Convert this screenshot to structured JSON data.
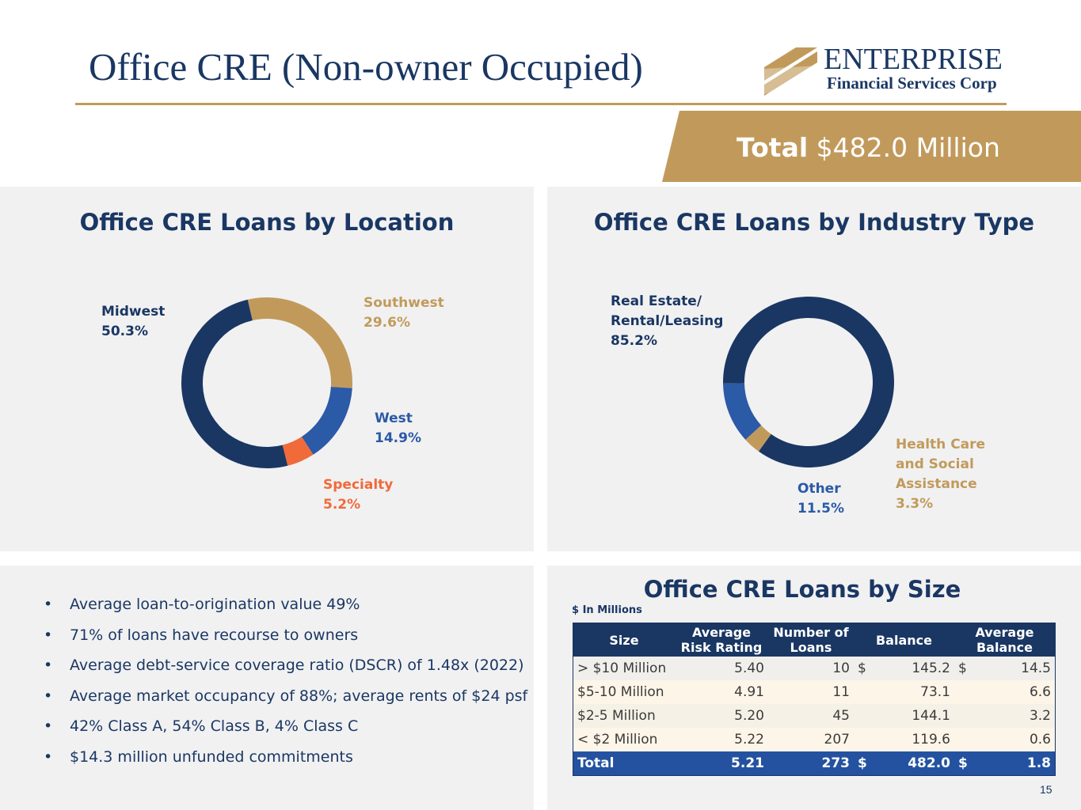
{
  "header": {
    "title": "Office CRE (Non-owner Occupied)",
    "logo_name": "ENTERPRISE",
    "logo_sub": "Financial Services Corp",
    "total_label": "Total",
    "total_value": "$482.0 Million"
  },
  "colors": {
    "navy": "#1a3763",
    "gold": "#c19a5b",
    "blue": "#2b5aa6",
    "orange": "#f06a3a",
    "panel": "#f1f1f2"
  },
  "chart_data": [
    {
      "type": "pie",
      "title": "Office CRE Loans by Location",
      "donut": true,
      "slices": [
        {
          "name": "Southwest",
          "value": 29.6,
          "label": "Southwest",
          "pct": "29.6%",
          "color": "#c19a5b"
        },
        {
          "name": "West",
          "value": 14.9,
          "label": "West",
          "pct": "14.9%",
          "color": "#2b5aa6"
        },
        {
          "name": "Specialty",
          "value": 5.2,
          "label": "Specialty",
          "pct": "5.2%",
          "color": "#f06a3a"
        },
        {
          "name": "Midwest",
          "value": 50.3,
          "label": "Midwest",
          "pct": "50.3%",
          "color": "#1a3763"
        }
      ]
    },
    {
      "type": "pie",
      "title": "Office CRE Loans by Industry Type",
      "donut": true,
      "slices": [
        {
          "name": "Real Estate/Rental/Leasing",
          "value": 85.2,
          "label_lines": [
            "Real Estate/",
            "Rental/Leasing"
          ],
          "pct": "85.2%",
          "color": "#1a3763"
        },
        {
          "name": "Health Care and Social Assistance",
          "value": 3.3,
          "label_lines": [
            "Health Care",
            "and Social",
            "Assistance"
          ],
          "pct": "3.3%",
          "color": "#c19a5b"
        },
        {
          "name": "Other",
          "value": 11.5,
          "label_lines": [
            "Other"
          ],
          "pct": "11.5%",
          "color": "#2b5aa6"
        }
      ]
    },
    {
      "type": "table",
      "title": "Office CRE Loans by Size",
      "note": "$ In Millions",
      "columns": [
        "Size",
        "Average Risk Rating",
        "Number of Loans",
        "Balance",
        "Average Balance"
      ],
      "rows": [
        {
          "size": "> $10 Million",
          "risk": "5.40",
          "loans": "10",
          "bal_cur": "$",
          "balance": "145.2",
          "avg_cur": "$",
          "avg": "14.5"
        },
        {
          "size": "$5-10 Million",
          "risk": "4.91",
          "loans": "11",
          "bal_cur": "",
          "balance": "73.1",
          "avg_cur": "",
          "avg": "6.6"
        },
        {
          "size": "$2-5 Million",
          "risk": "5.20",
          "loans": "45",
          "bal_cur": "",
          "balance": "144.1",
          "avg_cur": "",
          "avg": "3.2"
        },
        {
          "size": "< $2 Million",
          "risk": "5.22",
          "loans": "207",
          "bal_cur": "",
          "balance": "119.6",
          "avg_cur": "",
          "avg": "0.6"
        }
      ],
      "total": {
        "size": "Total",
        "risk": "5.21",
        "loans": "273",
        "bal_cur": "$",
        "balance": "482.0",
        "avg_cur": "$",
        "avg": "1.8"
      }
    }
  ],
  "bullets": [
    "Average loan-to-origination value 49%",
    "71% of loans have recourse to owners",
    "Average debt-service coverage ratio (DSCR) of 1.48x (2022)",
    "Average market occupancy of 88%; average rents of $24 psf",
    "42% Class A, 54% Class B, 4% Class C",
    "$14.3 million unfunded commitments"
  ],
  "page_number": "15"
}
